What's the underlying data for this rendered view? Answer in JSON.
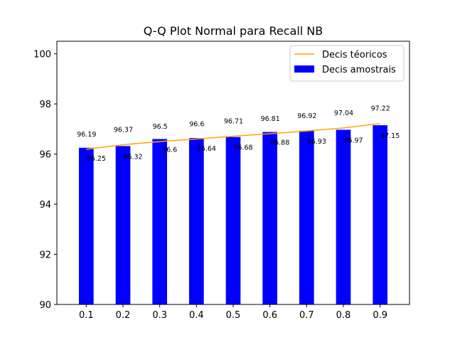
{
  "chart_data": {
    "type": "bar",
    "title": "Q-Q Plot Normal para Recall NB",
    "xlabel": "",
    "ylabel": "",
    "categories": [
      "0.1",
      "0.2",
      "0.3",
      "0.4",
      "0.5",
      "0.6",
      "0.7",
      "0.8",
      "0.9"
    ],
    "ylim": [
      90,
      100.5
    ],
    "yticks": [
      "90",
      "92",
      "94",
      "96",
      "98",
      "100"
    ],
    "series": [
      {
        "name": "Decis amostrais",
        "kind": "bar",
        "color": "#0000ff",
        "values": [
          96.25,
          96.32,
          96.6,
          96.64,
          96.68,
          96.88,
          96.93,
          96.97,
          97.15
        ],
        "labels": [
          "96.25",
          "96.32",
          "96.6",
          "96.64",
          "96.68",
          "96.88",
          "96.93",
          "96.97",
          "97.15"
        ]
      },
      {
        "name": "Decis téoricos",
        "kind": "line",
        "color": "#ffa500",
        "values": [
          96.19,
          96.37,
          96.5,
          96.6,
          96.71,
          96.81,
          96.92,
          97.04,
          97.22
        ],
        "labels": [
          "96.19",
          "96.37",
          "96.5",
          "96.6",
          "96.71",
          "96.81",
          "96.92",
          "97.04",
          "97.22"
        ]
      }
    ],
    "legend_position": "top-right",
    "grid": false
  }
}
